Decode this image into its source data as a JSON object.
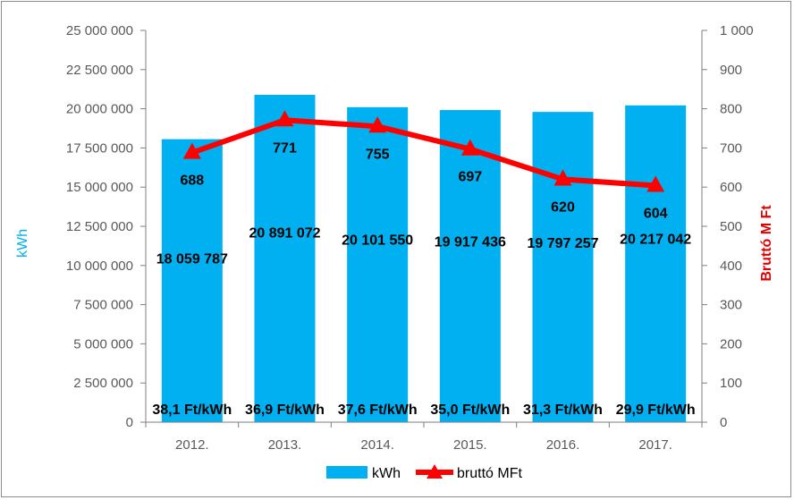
{
  "chart_data": {
    "type": "bar",
    "categories": [
      "2012.",
      "2013.",
      "2014.",
      "2015.",
      "2016.",
      "2017."
    ],
    "series": [
      {
        "name": "kWh",
        "type": "bar",
        "axis": "left",
        "color": "#00B0F0",
        "values": [
          18059787,
          20891072,
          20101550,
          19917436,
          19797257,
          20217042
        ],
        "labels": [
          "18 059 787",
          "20 891 072",
          "20 101 550",
          "19 917 436",
          "19 797 257",
          "20 217 042"
        ]
      },
      {
        "name": "bruttó MFt",
        "type": "line",
        "axis": "right",
        "color": "#FF0000",
        "marker": "triangle",
        "values": [
          688,
          771,
          755,
          697,
          620,
          604
        ],
        "labels": [
          "688",
          "771",
          "755",
          "697",
          "620",
          "604"
        ]
      }
    ],
    "unit_price_labels": [
      "38,1 Ft/kWh",
      "36,9 Ft/kWh",
      "37,6 Ft/kWh",
      "35,0 Ft/kWh",
      "31,3 Ft/kWh",
      "29,9 Ft/kWh"
    ],
    "ylabel": "kWh",
    "y2label": "Bruttó M Ft",
    "ylim": [
      0,
      25000000
    ],
    "y2lim": [
      0,
      1000
    ],
    "y_ticks": [
      "0",
      "2 500 000",
      "5 000 000",
      "7 500 000",
      "10 000 000",
      "12 500 000",
      "15 000 000",
      "17 500 000",
      "20 000 000",
      "22 500 000",
      "25 000 000"
    ],
    "y2_ticks": [
      "0",
      "100",
      "200",
      "300",
      "400",
      "500",
      "600",
      "700",
      "800",
      "900",
      "1 000"
    ],
    "grid": false,
    "legend": "bottom"
  }
}
